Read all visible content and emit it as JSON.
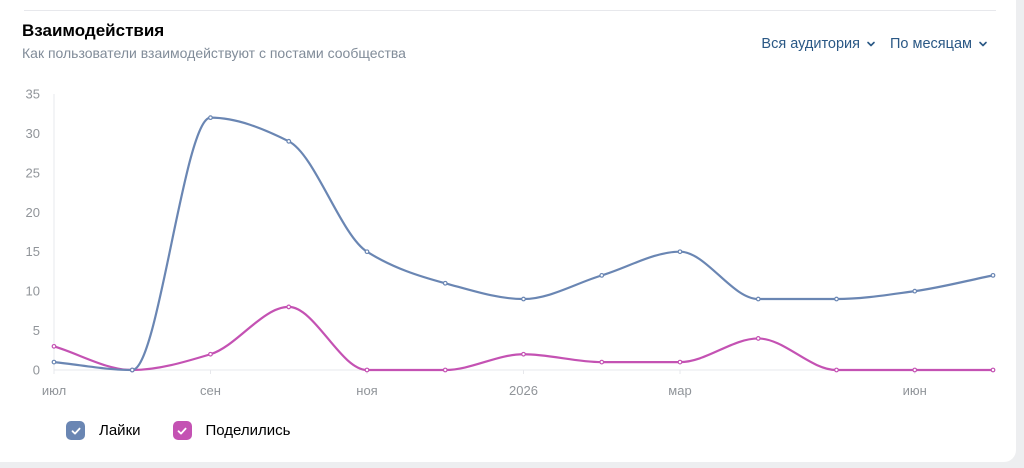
{
  "header": {
    "title": "Взаимодействия",
    "subtitle": "Как пользователи взаимодействуют с постами сообщества"
  },
  "filters": {
    "audience": "Вся аудитория",
    "period": "По месяцам"
  },
  "legend": {
    "likes": "Лайки",
    "shares": "Поделились"
  },
  "colors": {
    "likes": "#6a86b3",
    "shares": "#c452b3",
    "link": "#2a5885",
    "axis_text": "#909499",
    "grid": "#eeeff2"
  },
  "chart_data": {
    "type": "line",
    "x": [
      "2025-07",
      "2025-08",
      "2025-09",
      "2025-10",
      "2025-11",
      "2025-12",
      "2026-01",
      "2026-02",
      "2026-03",
      "2026-04",
      "2026-05",
      "2026-06",
      "2026-07"
    ],
    "x_tick_labels": [
      "июл",
      "",
      "сен",
      "",
      "ноя",
      "",
      "2026",
      "",
      "мар",
      "",
      "",
      "июн",
      ""
    ],
    "y_ticks": [
      0,
      5,
      10,
      15,
      20,
      25,
      30,
      35
    ],
    "ylim": [
      0,
      35
    ],
    "grid": false,
    "legend_position": "bottom-left",
    "series": [
      {
        "name": "Лайки",
        "key": "likes",
        "values": [
          1,
          0,
          32,
          29,
          15,
          11,
          9,
          12,
          15,
          9,
          9,
          10,
          12
        ]
      },
      {
        "name": "Поделились",
        "key": "shares",
        "values": [
          3,
          0,
          2,
          8,
          0,
          0,
          2,
          1,
          1,
          4,
          0,
          0,
          0
        ]
      }
    ]
  }
}
